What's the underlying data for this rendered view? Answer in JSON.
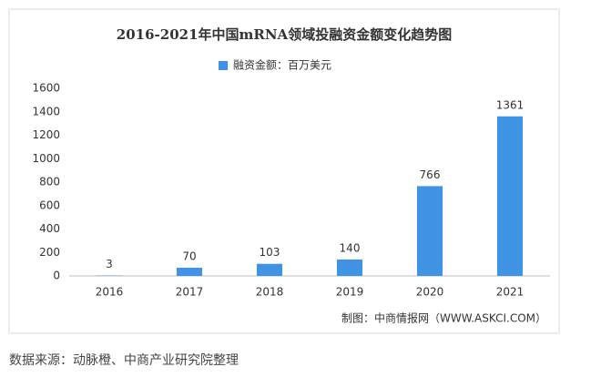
{
  "chart_data": {
    "type": "bar",
    "title": "2016-2021年中国mRNA领域投融资金额变化趋势图",
    "categories": [
      "2016",
      "2017",
      "2018",
      "2019",
      "2020",
      "2021"
    ],
    "series": [
      {
        "name": "融资金额：百万美元",
        "color": "#4093e4",
        "values": [
          3,
          70,
          103,
          140,
          766,
          1361
        ]
      }
    ],
    "ylim": [
      0,
      1600
    ],
    "yticks": [
      0,
      200,
      400,
      600,
      800,
      1000,
      1200,
      1400,
      1600
    ],
    "grid": false,
    "legend": "top",
    "source": "制图：中商情报网（WWW.ASKCI.COM）"
  },
  "caption": "数据来源：动脉橙、中商产业研究院整理"
}
